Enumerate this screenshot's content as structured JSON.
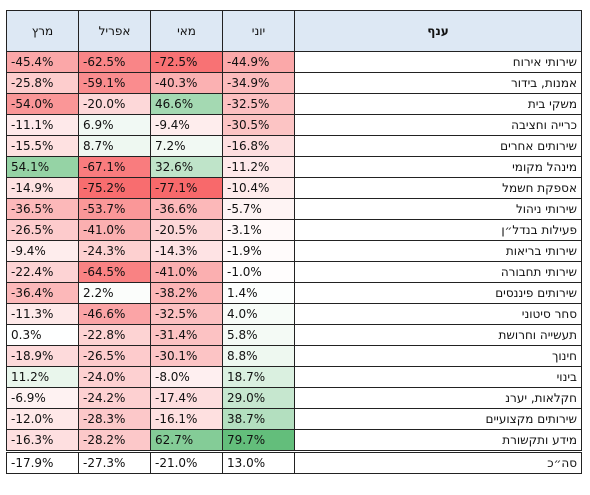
{
  "chart_data": {
    "type": "table",
    "headers": {
      "march": "מרץ",
      "april": "אפריל",
      "may": "מאי",
      "june": "יוני",
      "branch": "ענף"
    },
    "rows": [
      {
        "branch": "שירותי אירוח",
        "march": "-45.4%",
        "april": "-62.5%",
        "may": "-72.5%",
        "june": "-44.9%"
      },
      {
        "branch": "אמנות, בידור",
        "march": "-25.8%",
        "april": "-59.1%",
        "may": "-40.3%",
        "june": "-34.9%"
      },
      {
        "branch": "משקי בית",
        "march": "-54.0%",
        "april": "-20.0%",
        "may": "46.6%",
        "june": "-32.5%"
      },
      {
        "branch": "כרייה וחציבה",
        "march": "-11.1%",
        "april": "6.9%",
        "may": "-9.4%",
        "june": "-30.5%"
      },
      {
        "branch": "שירותים אחרים",
        "march": "-15.5%",
        "april": "8.7%",
        "may": "7.2%",
        "june": "-16.8%"
      },
      {
        "branch": "מינהל מקומי",
        "march": "54.1%",
        "april": "-67.1%",
        "may": "32.6%",
        "june": "-11.2%"
      },
      {
        "branch": "אספקת חשמל",
        "march": "-14.9%",
        "april": "-75.2%",
        "may": "-77.1%",
        "june": "-10.4%"
      },
      {
        "branch": "שירותי ניהול",
        "march": "-36.5%",
        "april": "-53.7%",
        "may": "-36.6%",
        "june": "-5.7%"
      },
      {
        "branch": "פעילות בנדל״ן",
        "march": "-26.5%",
        "april": "-41.0%",
        "may": "-20.5%",
        "june": "-3.1%"
      },
      {
        "branch": "שירותי בריאות",
        "march": "-9.4%",
        "april": "-24.3%",
        "may": "-14.3%",
        "june": "-1.9%"
      },
      {
        "branch": "שירותי תחבורה",
        "march": "-22.4%",
        "april": "-64.5%",
        "may": "-41.0%",
        "june": "-1.0%"
      },
      {
        "branch": "שירותים פיננסים",
        "march": "-36.4%",
        "april": "2.2%",
        "may": "-38.2%",
        "june": "1.4%"
      },
      {
        "branch": "סחר סיטוני",
        "march": "-11.3%",
        "april": "-46.6%",
        "may": "-32.5%",
        "june": "4.0%"
      },
      {
        "branch": "תעשייה וחרושת",
        "march": "0.3%",
        "april": "-22.8%",
        "may": "-31.4%",
        "june": "5.8%"
      },
      {
        "branch": "חינוך",
        "march": "-18.9%",
        "april": "-26.5%",
        "may": "-30.1%",
        "june": "8.8%"
      },
      {
        "branch": "בינוי",
        "march": "11.2%",
        "april": "-24.0%",
        "may": "-8.0%",
        "june": "18.7%"
      },
      {
        "branch": "חקלאות, יערנ",
        "march": "-6.9%",
        "april": "-24.2%",
        "may": "-17.4%",
        "june": "29.0%"
      },
      {
        "branch": "שירותים מקצועיים",
        "march": "-12.0%",
        "april": "-28.3%",
        "may": "-16.1%",
        "june": "38.7%"
      },
      {
        "branch": "מידע ותקשורת",
        "march": "-16.3%",
        "april": "-28.2%",
        "may": "62.7%",
        "june": "79.7%"
      }
    ],
    "total": {
      "branch": "סה״כ",
      "march": "-17.9%",
      "april": "-27.3%",
      "may": "-21.0%",
      "june": "13.0%"
    },
    "colors": {
      "negative": "#f8696b",
      "positive": "#63be7b",
      "neutral": "#ffffff",
      "header": "#dde8f4"
    }
  }
}
